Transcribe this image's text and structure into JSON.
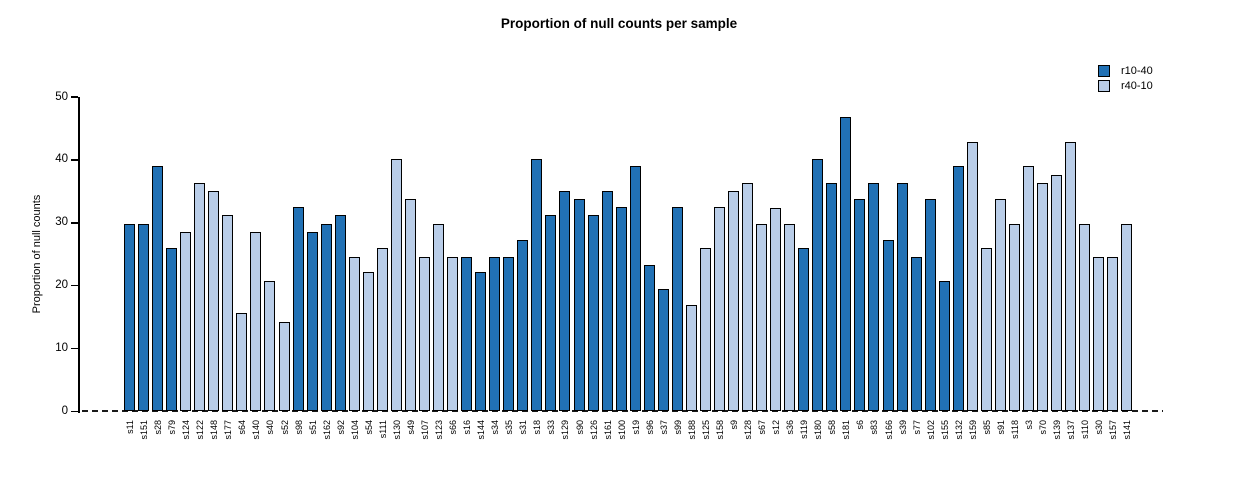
{
  "title": "Proportion of null counts per sample",
  "legend": [
    {
      "label": "r10-40",
      "color": "#2171B5"
    },
    {
      "label": "r40-10",
      "color": "#B9CDE8"
    }
  ],
  "chart_data": {
    "type": "bar",
    "title": "Proportion of null counts per sample",
    "xlabel": "",
    "ylabel": "Proportion of null counts",
    "ylim": [
      0,
      50
    ],
    "yticks": [
      0,
      10,
      20,
      30,
      40,
      50
    ],
    "grid": false,
    "legend_position": "top-right",
    "baseline_style": "dashed",
    "series_colors": {
      "r10-40": "#2171B5",
      "r40-10": "#B9CDE8"
    },
    "bar_outline_color": "#000000",
    "bars": [
      {
        "label": "s11",
        "value": 29.8,
        "group": "r10-40"
      },
      {
        "label": "s151",
        "value": 29.8,
        "group": "r10-40"
      },
      {
        "label": "s28",
        "value": 39.0,
        "group": "r10-40"
      },
      {
        "label": "s79",
        "value": 26.0,
        "group": "r10-40"
      },
      {
        "label": "s124",
        "value": 28.5,
        "group": "r40-10"
      },
      {
        "label": "s122",
        "value": 36.4,
        "group": "r40-10"
      },
      {
        "label": "s148",
        "value": 35.0,
        "group": "r40-10"
      },
      {
        "label": "s177",
        "value": 31.2,
        "group": "r40-10"
      },
      {
        "label": "s64",
        "value": 15.6,
        "group": "r40-10"
      },
      {
        "label": "s140",
        "value": 28.5,
        "group": "r40-10"
      },
      {
        "label": "s40",
        "value": 20.8,
        "group": "r40-10"
      },
      {
        "label": "s52",
        "value": 14.3,
        "group": "r40-10"
      },
      {
        "label": "s98",
        "value": 32.5,
        "group": "r10-40"
      },
      {
        "label": "s51",
        "value": 28.5,
        "group": "r10-40"
      },
      {
        "label": "s162",
        "value": 29.8,
        "group": "r10-40"
      },
      {
        "label": "s92",
        "value": 31.2,
        "group": "r10-40"
      },
      {
        "label": "s104",
        "value": 24.5,
        "group": "r40-10"
      },
      {
        "label": "s54",
        "value": 22.1,
        "group": "r40-10"
      },
      {
        "label": "s111",
        "value": 26.0,
        "group": "r40-10"
      },
      {
        "label": "s130",
        "value": 40.2,
        "group": "r40-10"
      },
      {
        "label": "s49",
        "value": 33.8,
        "group": "r40-10"
      },
      {
        "label": "s107",
        "value": 24.5,
        "group": "r40-10"
      },
      {
        "label": "s123",
        "value": 29.8,
        "group": "r40-10"
      },
      {
        "label": "s66",
        "value": 24.5,
        "group": "r40-10"
      },
      {
        "label": "s16",
        "value": 24.5,
        "group": "r10-40"
      },
      {
        "label": "s144",
        "value": 22.1,
        "group": "r10-40"
      },
      {
        "label": "s34",
        "value": 24.5,
        "group": "r10-40"
      },
      {
        "label": "s35",
        "value": 24.5,
        "group": "r10-40"
      },
      {
        "label": "s31",
        "value": 27.3,
        "group": "r10-40"
      },
      {
        "label": "s18",
        "value": 40.2,
        "group": "r10-40"
      },
      {
        "label": "s33",
        "value": 31.2,
        "group": "r10-40"
      },
      {
        "label": "s129",
        "value": 35.0,
        "group": "r10-40"
      },
      {
        "label": "s90",
        "value": 33.8,
        "group": "r10-40"
      },
      {
        "label": "s126",
        "value": 31.2,
        "group": "r10-40"
      },
      {
        "label": "s161",
        "value": 35.0,
        "group": "r10-40"
      },
      {
        "label": "s100",
        "value": 32.5,
        "group": "r10-40"
      },
      {
        "label": "s19",
        "value": 39.0,
        "group": "r10-40"
      },
      {
        "label": "s96",
        "value": 23.3,
        "group": "r10-40"
      },
      {
        "label": "s37",
        "value": 19.5,
        "group": "r10-40"
      },
      {
        "label": "s99",
        "value": 32.5,
        "group": "r10-40"
      },
      {
        "label": "s188",
        "value": 16.9,
        "group": "r40-10"
      },
      {
        "label": "s125",
        "value": 26.0,
        "group": "r40-10"
      },
      {
        "label": "s158",
        "value": 32.5,
        "group": "r40-10"
      },
      {
        "label": "s9",
        "value": 35.0,
        "group": "r40-10"
      },
      {
        "label": "s128",
        "value": 36.4,
        "group": "r40-10"
      },
      {
        "label": "s67",
        "value": 29.8,
        "group": "r40-10"
      },
      {
        "label": "s12",
        "value": 32.4,
        "group": "r40-10"
      },
      {
        "label": "s36",
        "value": 29.8,
        "group": "r40-10"
      },
      {
        "label": "s119",
        "value": 26.0,
        "group": "r10-40"
      },
      {
        "label": "s180",
        "value": 40.2,
        "group": "r10-40"
      },
      {
        "label": "s58",
        "value": 36.4,
        "group": "r10-40"
      },
      {
        "label": "s181",
        "value": 46.8,
        "group": "r10-40"
      },
      {
        "label": "s6",
        "value": 33.8,
        "group": "r10-40"
      },
      {
        "label": "s83",
        "value": 36.4,
        "group": "r10-40"
      },
      {
        "label": "s166",
        "value": 27.3,
        "group": "r10-40"
      },
      {
        "label": "s39",
        "value": 36.4,
        "group": "r10-40"
      },
      {
        "label": "s77",
        "value": 24.5,
        "group": "r10-40"
      },
      {
        "label": "s102",
        "value": 33.8,
        "group": "r10-40"
      },
      {
        "label": "s155",
        "value": 20.8,
        "group": "r10-40"
      },
      {
        "label": "s132",
        "value": 39.0,
        "group": "r10-40"
      },
      {
        "label": "s159",
        "value": 42.8,
        "group": "r40-10"
      },
      {
        "label": "s85",
        "value": 26.0,
        "group": "r40-10"
      },
      {
        "label": "s91",
        "value": 33.8,
        "group": "r40-10"
      },
      {
        "label": "s118",
        "value": 29.8,
        "group": "r40-10"
      },
      {
        "label": "s3",
        "value": 39.0,
        "group": "r40-10"
      },
      {
        "label": "s70",
        "value": 36.4,
        "group": "r40-10"
      },
      {
        "label": "s139",
        "value": 37.6,
        "group": "r40-10"
      },
      {
        "label": "s137",
        "value": 42.8,
        "group": "r40-10"
      },
      {
        "label": "s110",
        "value": 29.8,
        "group": "r40-10"
      },
      {
        "label": "s30",
        "value": 24.5,
        "group": "r40-10"
      },
      {
        "label": "s157",
        "value": 24.5,
        "group": "r40-10"
      },
      {
        "label": "s141",
        "value": 29.8,
        "group": "r40-10"
      }
    ]
  }
}
